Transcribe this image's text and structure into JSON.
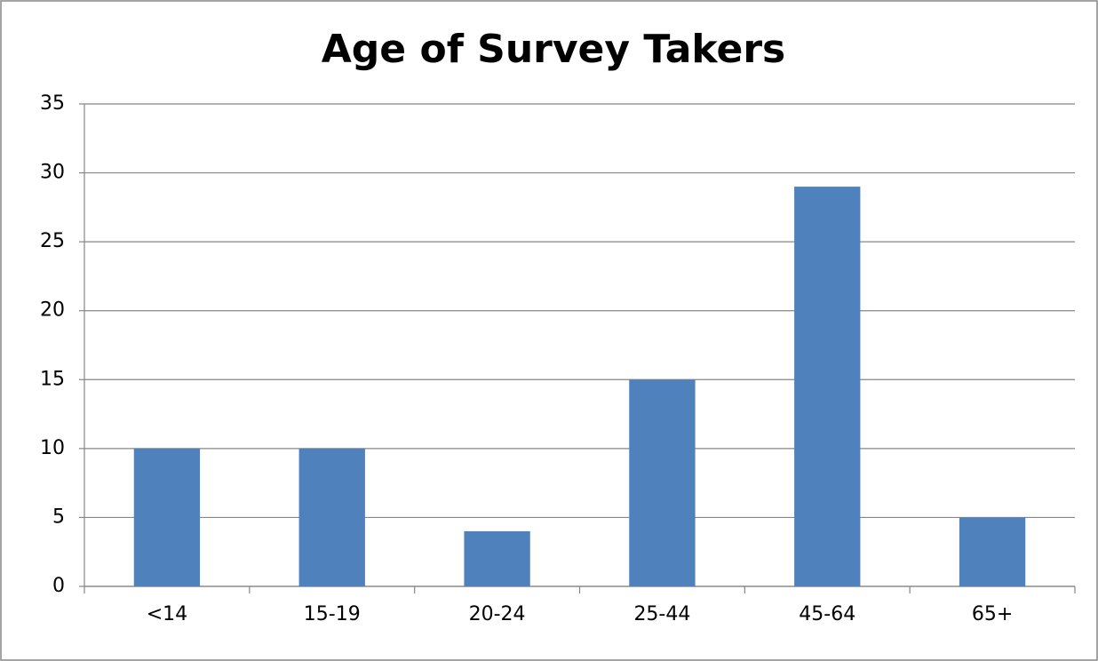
{
  "chart_data": {
    "type": "bar",
    "title": "Age of Survey Takers",
    "categories": [
      "<14",
      "15-19",
      "20-24",
      "25-44",
      "45-64",
      "65+"
    ],
    "values": [
      10,
      10,
      4,
      15,
      29,
      5
    ],
    "color": "#4f81bd",
    "ylim": [
      0,
      35
    ],
    "yticks": [
      0,
      5,
      10,
      15,
      20,
      25,
      30,
      35
    ],
    "grid": true
  }
}
